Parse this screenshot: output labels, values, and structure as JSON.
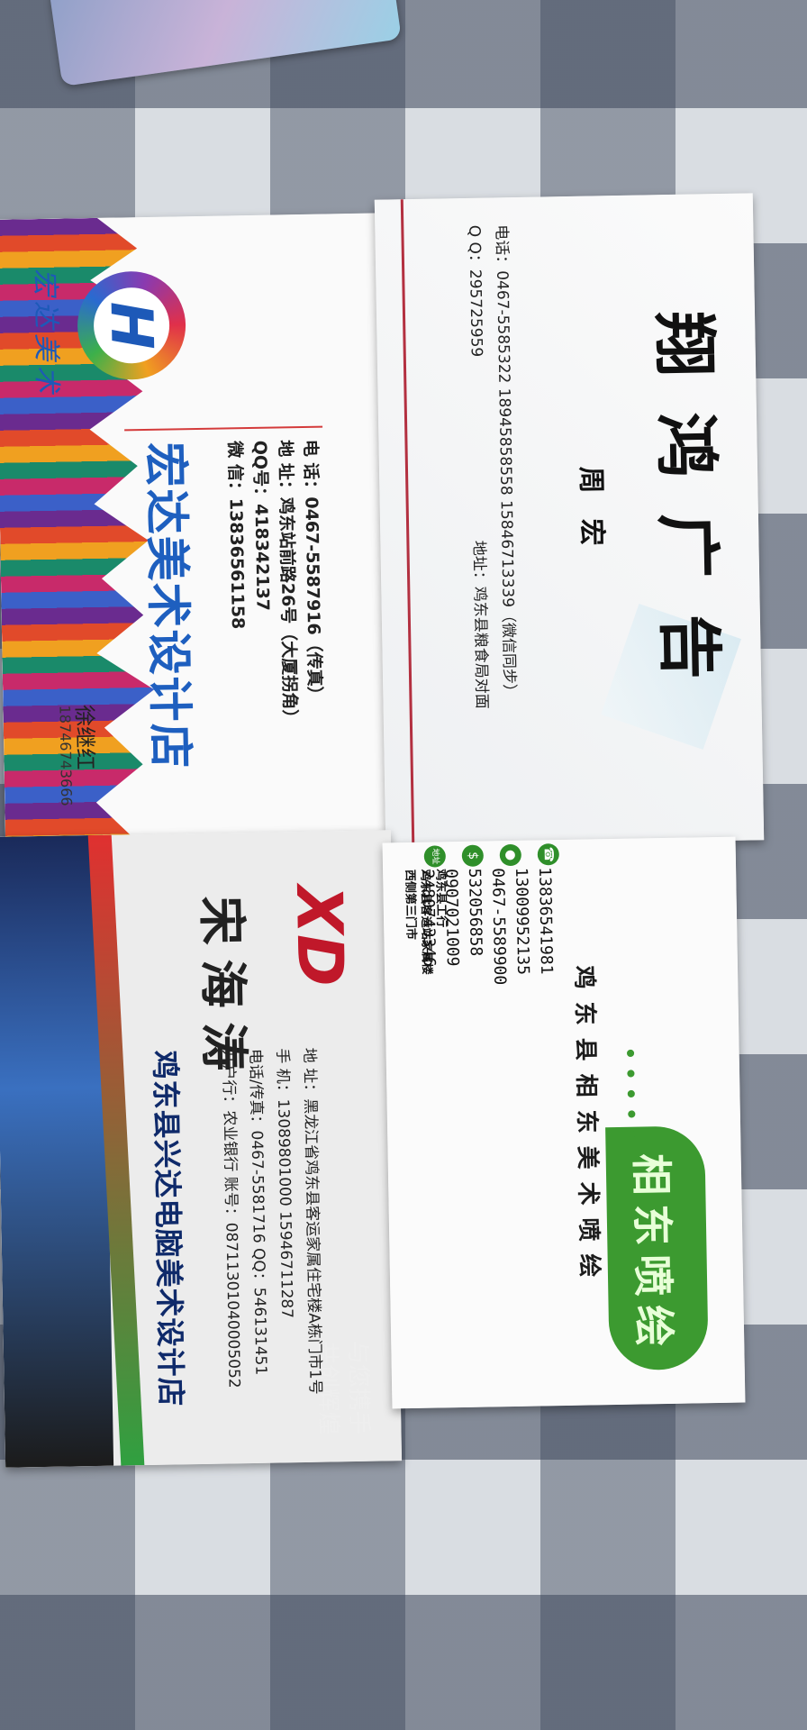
{
  "card_hongda": {
    "brand": "宏达美术",
    "logo_letter": "H",
    "title": "宏达美术设计店",
    "phone_line": "电  话：0467-5587916（传真）",
    "address_line": "地  址：鸡东站前路26号（大厦拐角）",
    "qq_line": "QQ号：418342137",
    "wechat_line": "微  信：13836561158",
    "contact_name": "徐继红",
    "contact_mobile": "18746743666"
  },
  "card_xianghong": {
    "company": "翔鸿广告",
    "person": "周宏",
    "phone_line": "电话：0467-5585322  18945858558  15846713339（微信同步）",
    "qq_line": "Q Q：295725959",
    "address_line": "地址：鸡东县粮食局对面"
  },
  "card_xingda": {
    "slogan_line1": "与您携手",
    "slogan_line2": "共创辉煌",
    "logo": "XD",
    "person": "宋海涛",
    "title": "鸡东县兴达电脑美术设计店",
    "address_line": "地  址：黑龙江省鸡东县客运家属住宅楼A栋门市1号",
    "mobile_line": "手  机：13089801000  15946711287",
    "phone_line": "电话/传真：0467-5581716  QQ：546131451",
    "bank_line": "开户行：农业银行  账号：08711301040005052"
  },
  "card_xiangdong": {
    "tag": "相东喷绘",
    "title": "鸡东县相东美术喷绘",
    "phones": [
      "13836541981",
      "13009952135",
      "0467-5589900",
      "532056858",
      "0907021009",
      "2480743346"
    ],
    "bank": "鸡东县工行",
    "address_line1": "鸡东县客运站家属楼",
    "address_line2": "西侧第三门市",
    "addr_label": "地址"
  }
}
